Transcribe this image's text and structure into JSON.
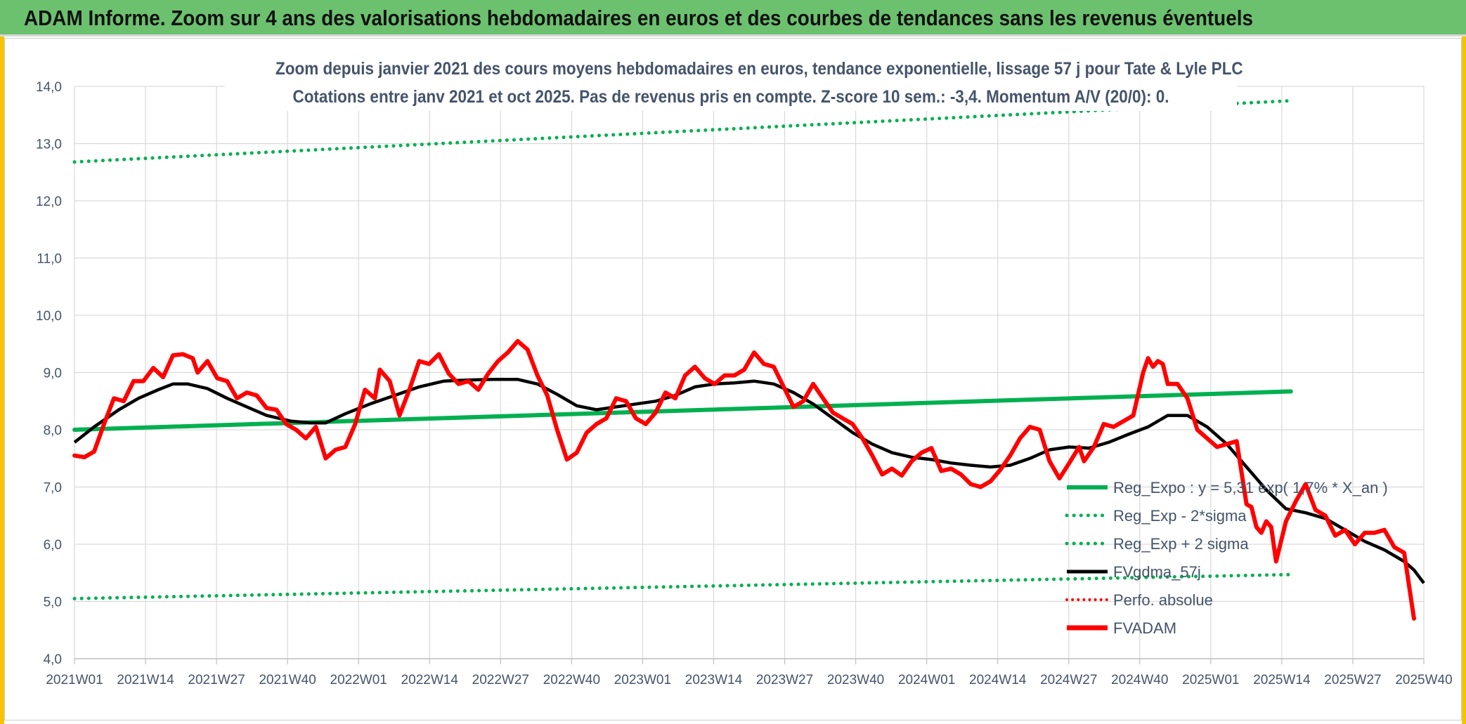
{
  "header": {
    "title": "ADAM Informe. Zoom sur 4 ans des valorisations hebdomadaires en euros et des courbes de tendances sans les revenus éventuels"
  },
  "colors": {
    "regression": "#00b050",
    "bands": "#00b050",
    "smoothed": "#000000",
    "price": "#ff0000",
    "perfo": "#ff0000",
    "banner": "#6cc16f",
    "accent": "#f5c400"
  },
  "chart_data": {
    "type": "line",
    "title_line1": "Zoom depuis janvier 2021 des cours moyens hebdomadaires en euros, tendance exponentielle, lissage 57 j pour Tate & Lyle PLC",
    "title_line2": "Cotations entre janv 2021 et oct 2025. Pas de revenus pris en compte. Z-score 10 sem.: -3,4. Momentum A/V (20/0): 0.",
    "ylim": [
      4.0,
      14.0
    ],
    "y_ticks": [
      "4,0",
      "5,0",
      "6,0",
      "7,0",
      "8,0",
      "9,0",
      "10,0",
      "11,0",
      "12,0",
      "13,0",
      "14,0"
    ],
    "x_ticks": [
      "2021W01",
      "2021W14",
      "2021W27",
      "2021W40",
      "2022W01",
      "2022W14",
      "2022W27",
      "2022W40",
      "2023W01",
      "2023W14",
      "2023W27",
      "2023W40",
      "2024W01",
      "2024W14",
      "2024W27",
      "2024W40",
      "2025W01",
      "2025W14",
      "2025W27",
      "2025W40"
    ],
    "grid": true,
    "legend_position": "bottom-right",
    "legend": [
      "Reg_Expo : y = 5,31 exp( 1,7% *  X_an )",
      "Reg_Exp - 2*sigma",
      "Reg_Exp + 2 sigma",
      "FVgdma_57j",
      "Perfo. absolue",
      "FVADAM"
    ],
    "series": [
      {
        "name": "Reg_Expo : y = 5,31 exp( 1,7% *  X_an )",
        "style": "solid-thick",
        "color": "#00b050",
        "points": [
          [
            0,
            8.0
          ],
          [
            247,
            8.67
          ]
        ]
      },
      {
        "name": "Reg_Exp - 2*sigma",
        "style": "dotted",
        "color": "#00b050",
        "points": [
          [
            0,
            5.05
          ],
          [
            247,
            5.47
          ]
        ]
      },
      {
        "name": "Reg_Exp + 2 sigma",
        "style": "dotted",
        "color": "#00b050",
        "points": [
          [
            0,
            12.68
          ],
          [
            247,
            13.75
          ]
        ]
      },
      {
        "name": "FVgdma_57j",
        "style": "solid",
        "color": "#000000",
        "points": [
          [
            0,
            7.78
          ],
          [
            4,
            8.05
          ],
          [
            9,
            8.35
          ],
          [
            13,
            8.55
          ],
          [
            17,
            8.7
          ],
          [
            20,
            8.8
          ],
          [
            23,
            8.8
          ],
          [
            27,
            8.72
          ],
          [
            31,
            8.55
          ],
          [
            35,
            8.4
          ],
          [
            39,
            8.25
          ],
          [
            44,
            8.15
          ],
          [
            48,
            8.12
          ],
          [
            51,
            8.12
          ],
          [
            55,
            8.28
          ],
          [
            60,
            8.45
          ],
          [
            65,
            8.6
          ],
          [
            70,
            8.75
          ],
          [
            75,
            8.85
          ],
          [
            80,
            8.87
          ],
          [
            85,
            8.88
          ],
          [
            90,
            8.88
          ],
          [
            94,
            8.8
          ],
          [
            98,
            8.62
          ],
          [
            102,
            8.42
          ],
          [
            106,
            8.35
          ],
          [
            110,
            8.4
          ],
          [
            114,
            8.45
          ],
          [
            118,
            8.5
          ],
          [
            122,
            8.6
          ],
          [
            126,
            8.75
          ],
          [
            130,
            8.8
          ],
          [
            134,
            8.82
          ],
          [
            138,
            8.85
          ],
          [
            142,
            8.8
          ],
          [
            146,
            8.65
          ],
          [
            150,
            8.45
          ],
          [
            154,
            8.2
          ],
          [
            158,
            7.95
          ],
          [
            162,
            7.75
          ],
          [
            166,
            7.6
          ],
          [
            170,
            7.52
          ],
          [
            174,
            7.48
          ],
          [
            178,
            7.42
          ],
          [
            182,
            7.38
          ],
          [
            186,
            7.35
          ],
          [
            190,
            7.38
          ],
          [
            194,
            7.5
          ],
          [
            198,
            7.65
          ],
          [
            202,
            7.7
          ],
          [
            206,
            7.68
          ],
          [
            210,
            7.78
          ],
          [
            214,
            7.92
          ],
          [
            218,
            8.05
          ],
          [
            222,
            8.25
          ],
          [
            226,
            8.25
          ],
          [
            230,
            8.05
          ],
          [
            234,
            7.75
          ],
          [
            238,
            7.35
          ],
          [
            242,
            6.95
          ],
          [
            246,
            6.62
          ],
          [
            250,
            6.55
          ],
          [
            254,
            6.45
          ],
          [
            258,
            6.25
          ],
          [
            262,
            6.05
          ],
          [
            266,
            5.9
          ],
          [
            270,
            5.7
          ],
          [
            272,
            5.55
          ],
          [
            274,
            5.32
          ]
        ]
      },
      {
        "name": "FVADAM",
        "style": "solid-thick",
        "color": "#ff0000",
        "points": [
          [
            0,
            7.55
          ],
          [
            2,
            7.52
          ],
          [
            4,
            7.62
          ],
          [
            6,
            8.1
          ],
          [
            8,
            8.55
          ],
          [
            10,
            8.5
          ],
          [
            12,
            8.85
          ],
          [
            14,
            8.85
          ],
          [
            16,
            9.08
          ],
          [
            18,
            8.92
          ],
          [
            20,
            9.3
          ],
          [
            22,
            9.32
          ],
          [
            24,
            9.25
          ],
          [
            25,
            9.0
          ],
          [
            27,
            9.2
          ],
          [
            29,
            8.9
          ],
          [
            31,
            8.85
          ],
          [
            33,
            8.55
          ],
          [
            35,
            8.65
          ],
          [
            37,
            8.6
          ],
          [
            39,
            8.38
          ],
          [
            41,
            8.35
          ],
          [
            43,
            8.1
          ],
          [
            45,
            8.0
          ],
          [
            47,
            7.85
          ],
          [
            49,
            8.05
          ],
          [
            51,
            7.5
          ],
          [
            53,
            7.65
          ],
          [
            55,
            7.7
          ],
          [
            57,
            8.1
          ],
          [
            59,
            8.7
          ],
          [
            61,
            8.55
          ],
          [
            62,
            9.05
          ],
          [
            64,
            8.85
          ],
          [
            66,
            8.25
          ],
          [
            68,
            8.7
          ],
          [
            70,
            9.2
          ],
          [
            72,
            9.15
          ],
          [
            74,
            9.32
          ],
          [
            76,
            8.98
          ],
          [
            78,
            8.8
          ],
          [
            80,
            8.85
          ],
          [
            82,
            8.7
          ],
          [
            84,
            8.98
          ],
          [
            86,
            9.2
          ],
          [
            88,
            9.35
          ],
          [
            90,
            9.55
          ],
          [
            92,
            9.4
          ],
          [
            94,
            8.95
          ],
          [
            96,
            8.6
          ],
          [
            98,
            8.0
          ],
          [
            100,
            7.48
          ],
          [
            102,
            7.6
          ],
          [
            104,
            7.95
          ],
          [
            106,
            8.1
          ],
          [
            108,
            8.2
          ],
          [
            110,
            8.55
          ],
          [
            112,
            8.5
          ],
          [
            114,
            8.2
          ],
          [
            116,
            8.1
          ],
          [
            118,
            8.3
          ],
          [
            120,
            8.65
          ],
          [
            122,
            8.55
          ],
          [
            124,
            8.95
          ],
          [
            126,
            9.1
          ],
          [
            128,
            8.9
          ],
          [
            130,
            8.8
          ],
          [
            132,
            8.95
          ],
          [
            134,
            8.95
          ],
          [
            136,
            9.05
          ],
          [
            138,
            9.35
          ],
          [
            140,
            9.15
          ],
          [
            142,
            9.1
          ],
          [
            144,
            8.75
          ],
          [
            146,
            8.4
          ],
          [
            148,
            8.5
          ],
          [
            150,
            8.8
          ],
          [
            152,
            8.55
          ],
          [
            154,
            8.3
          ],
          [
            156,
            8.2
          ],
          [
            158,
            8.1
          ],
          [
            160,
            7.85
          ],
          [
            162,
            7.55
          ],
          [
            164,
            7.22
          ],
          [
            166,
            7.32
          ],
          [
            168,
            7.2
          ],
          [
            170,
            7.45
          ],
          [
            172,
            7.6
          ],
          [
            174,
            7.68
          ],
          [
            176,
            7.28
          ],
          [
            178,
            7.32
          ],
          [
            180,
            7.22
          ],
          [
            182,
            7.05
          ],
          [
            184,
            7.0
          ],
          [
            186,
            7.1
          ],
          [
            188,
            7.3
          ],
          [
            190,
            7.55
          ],
          [
            192,
            7.85
          ],
          [
            194,
            8.05
          ],
          [
            196,
            8.0
          ],
          [
            198,
            7.45
          ],
          [
            200,
            7.15
          ],
          [
            202,
            7.42
          ],
          [
            204,
            7.7
          ],
          [
            205,
            7.45
          ],
          [
            207,
            7.7
          ],
          [
            209,
            8.1
          ],
          [
            211,
            8.05
          ],
          [
            213,
            8.15
          ],
          [
            215,
            8.25
          ],
          [
            217,
            9.0
          ],
          [
            218,
            9.25
          ],
          [
            219,
            9.1
          ],
          [
            220,
            9.2
          ],
          [
            221,
            9.15
          ],
          [
            222,
            8.8
          ],
          [
            224,
            8.8
          ],
          [
            226,
            8.55
          ],
          [
            228,
            8.0
          ],
          [
            230,
            7.85
          ],
          [
            232,
            7.7
          ],
          [
            234,
            7.75
          ],
          [
            236,
            7.8
          ],
          [
            238,
            6.7
          ],
          [
            239,
            6.65
          ],
          [
            240,
            6.3
          ],
          [
            241,
            6.2
          ],
          [
            242,
            6.4
          ],
          [
            243,
            6.3
          ],
          [
            244,
            5.7
          ],
          [
            246,
            6.4
          ],
          [
            248,
            6.75
          ],
          [
            250,
            7.05
          ],
          [
            252,
            6.6
          ],
          [
            254,
            6.5
          ],
          [
            256,
            6.15
          ],
          [
            258,
            6.25
          ],
          [
            260,
            6.0
          ],
          [
            262,
            6.2
          ],
          [
            264,
            6.2
          ],
          [
            266,
            6.25
          ],
          [
            268,
            5.95
          ],
          [
            270,
            5.85
          ],
          [
            272,
            4.7
          ]
        ]
      }
    ]
  }
}
